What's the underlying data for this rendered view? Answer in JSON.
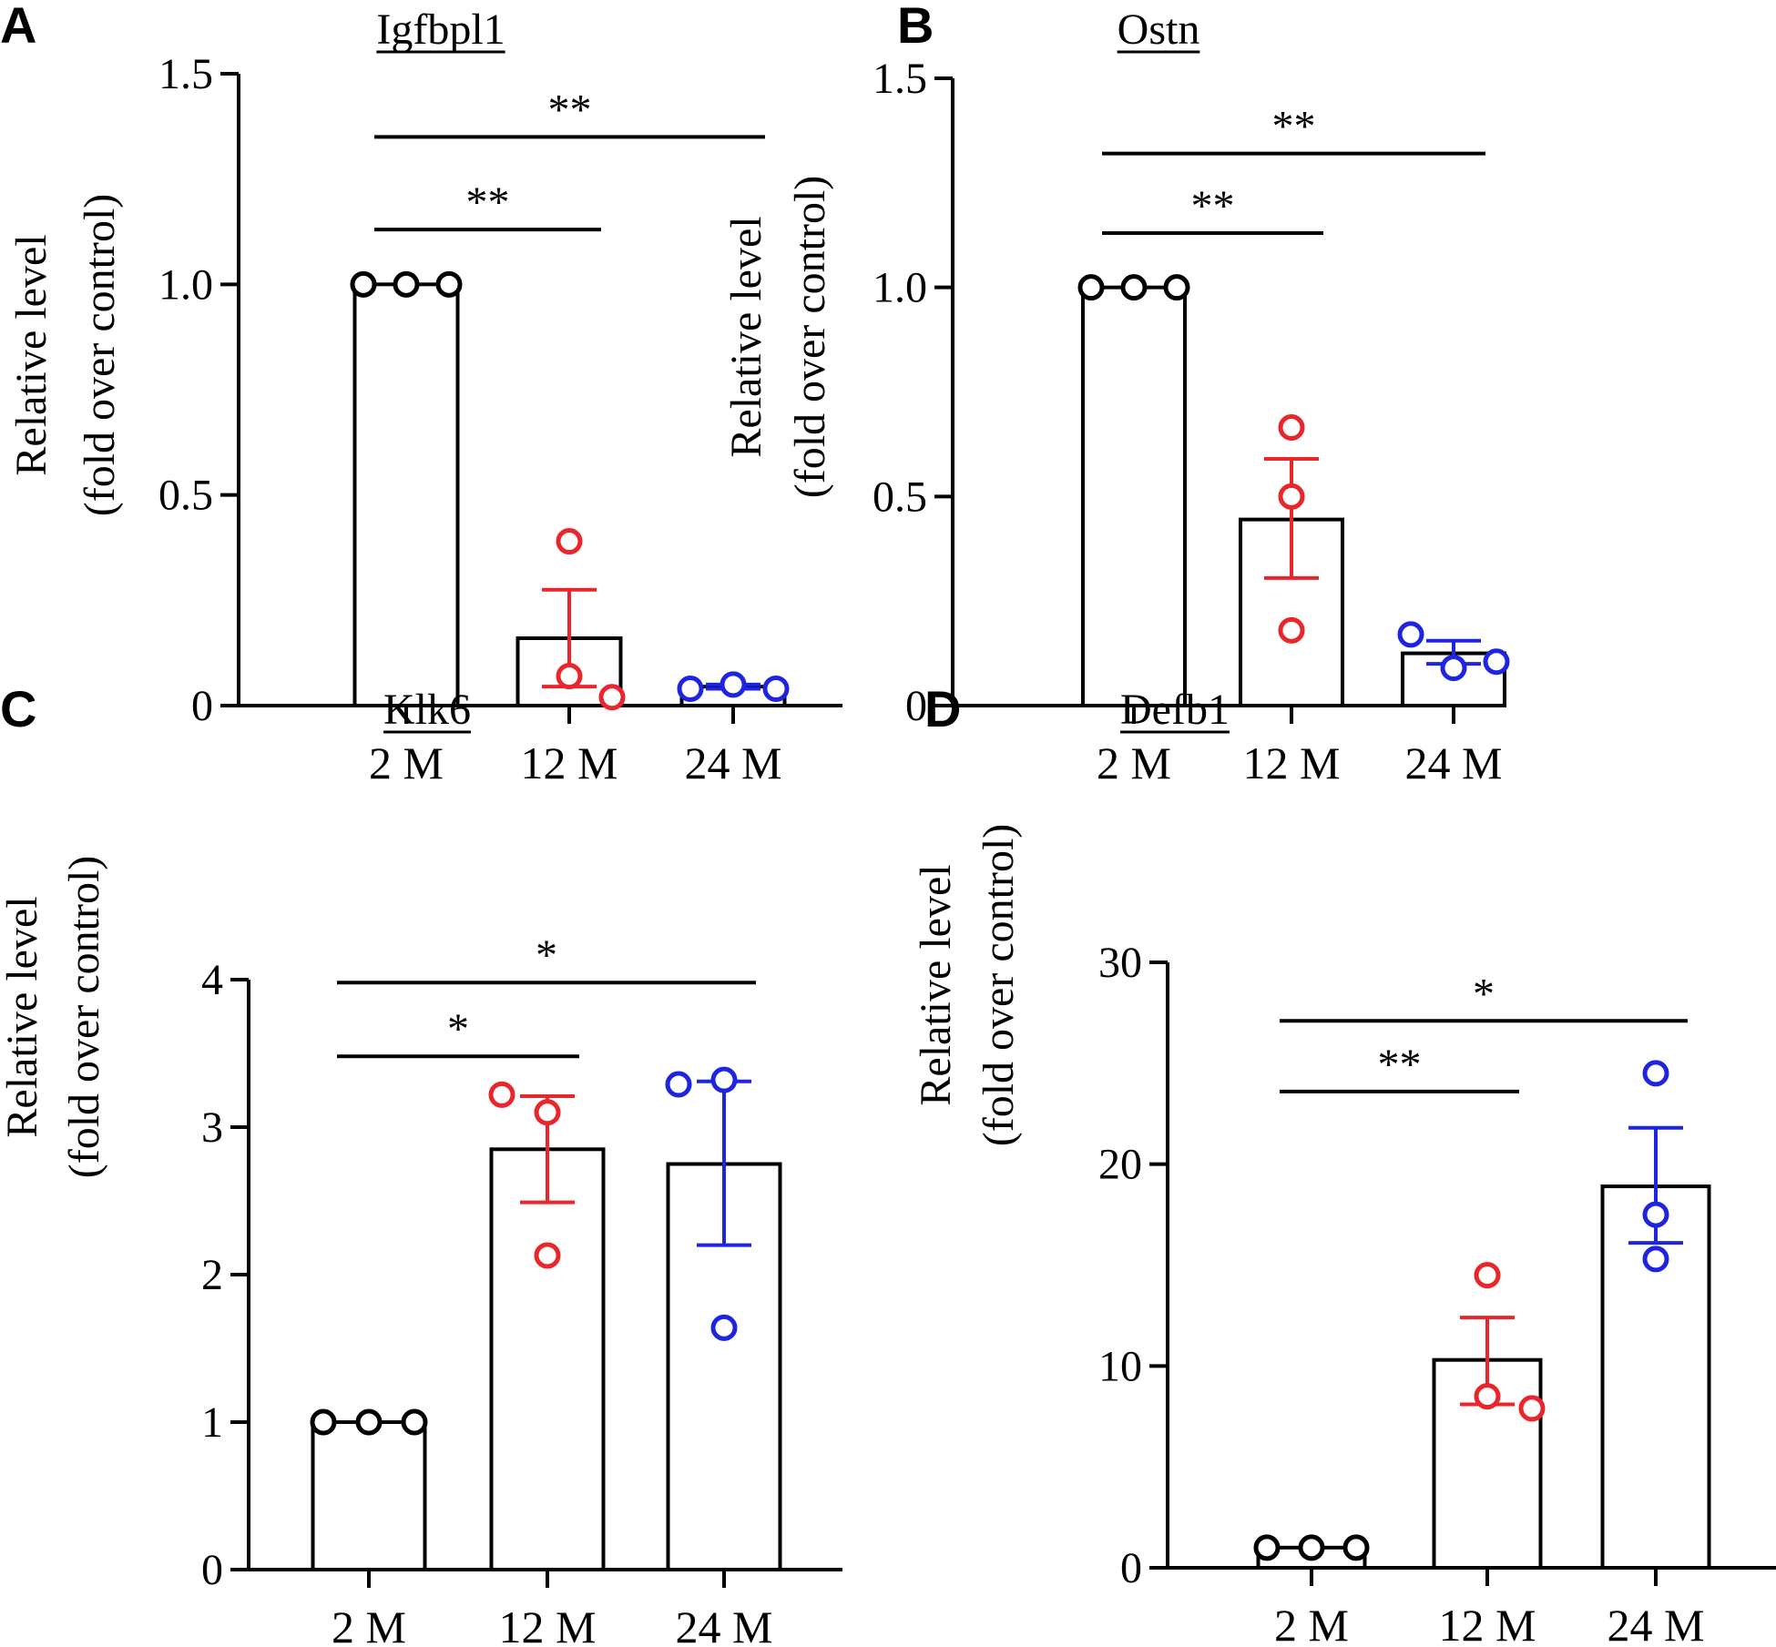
{
  "figure": {
    "panels": [
      "A",
      "B",
      "C",
      "D"
    ]
  },
  "chart_data": [
    {
      "type": "bar",
      "panel_label": "A",
      "title": "Igfbpl1",
      "ylabel_line1": "Relative level",
      "ylabel_line2": "(fold over control)",
      "xlabel": "",
      "categories": [
        "2 M",
        "12 M",
        "24 M"
      ],
      "values": [
        1.0,
        0.16,
        0.045
      ],
      "error_upper": [
        1.0,
        0.275,
        0.05
      ],
      "error_lower": [
        1.0,
        0.045,
        0.04
      ],
      "points": [
        [
          1.0,
          1.0,
          1.0
        ],
        [
          0.39,
          0.07,
          0.02
        ],
        [
          0.04,
          0.05,
          0.04
        ]
      ],
      "point_colors": [
        "#000000",
        "#e8262b",
        "#1f24e0"
      ],
      "ylim": [
        0,
        1.5
      ],
      "yticks": [
        0,
        0.5,
        1.0,
        1.5
      ],
      "ytick_labels": [
        "0",
        "0.5",
        "1.0",
        "1.5"
      ],
      "significance": [
        {
          "from": 0,
          "to": 1,
          "y": 1.13,
          "label": "**"
        },
        {
          "from": 0,
          "to": 2,
          "y": 1.35,
          "label": "**"
        }
      ]
    },
    {
      "type": "bar",
      "panel_label": "B",
      "title": "Ostn",
      "ylabel_line1": "Relative level",
      "ylabel_line2": "(fold over control)",
      "xlabel": "",
      "categories": [
        "2 M",
        "12 M",
        "24 M"
      ],
      "values": [
        1.0,
        0.445,
        0.125
      ],
      "error_upper": [
        1.0,
        0.59,
        0.155
      ],
      "error_lower": [
        1.0,
        0.305,
        0.1
      ],
      "points": [
        [
          1.0,
          1.0,
          1.0
        ],
        [
          0.665,
          0.5,
          0.18
        ],
        [
          0.17,
          0.09,
          0.105
        ]
      ],
      "point_colors": [
        "#000000",
        "#e8262b",
        "#1f24e0"
      ],
      "ylim": [
        0,
        1.5
      ],
      "yticks": [
        0,
        0.5,
        1.0,
        1.5
      ],
      "ytick_labels": [
        "0",
        "0.5",
        "1.0",
        "1.5"
      ],
      "significance": [
        {
          "from": 0,
          "to": 1,
          "y": 1.13,
          "label": "**"
        },
        {
          "from": 0,
          "to": 2,
          "y": 1.32,
          "label": "**"
        }
      ]
    },
    {
      "type": "bar",
      "panel_label": "C",
      "title": "Klk6",
      "ylabel_line1": "Relative level",
      "ylabel_line2": "(fold over control)",
      "xlabel": "",
      "categories": [
        "2 M",
        "12 M",
        "24 M"
      ],
      "values": [
        1.0,
        2.85,
        2.75
      ],
      "error_upper": [
        1.0,
        3.21,
        3.31
      ],
      "error_lower": [
        1.0,
        2.49,
        2.2
      ],
      "points": [
        [
          1.0,
          1.0,
          1.0
        ],
        [
          3.22,
          3.1,
          2.13
        ],
        [
          3.29,
          3.32,
          1.64
        ]
      ],
      "point_colors": [
        "#000000",
        "#e8262b",
        "#1f24e0"
      ],
      "ylim": [
        0,
        4
      ],
      "yticks": [
        0,
        1,
        2,
        3,
        4
      ],
      "ytick_labels": [
        "0",
        "1",
        "2",
        "3",
        "4"
      ],
      "significance": [
        {
          "from": 0,
          "to": 1,
          "y": 3.48,
          "label": "*"
        },
        {
          "from": 0,
          "to": 2,
          "y": 3.98,
          "label": "*"
        }
      ]
    },
    {
      "type": "bar",
      "panel_label": "D",
      "title": "Defb1",
      "ylabel_line1": "Relative level",
      "ylabel_line2": "(fold over control)",
      "xlabel": "",
      "categories": [
        "2 M",
        "12 M",
        "24 M"
      ],
      "values": [
        1.0,
        10.3,
        18.9
      ],
      "error_upper": [
        1.0,
        12.4,
        21.8
      ],
      "error_lower": [
        1.0,
        8.1,
        16.1
      ],
      "points": [
        [
          1.0,
          1.0,
          1.0
        ],
        [
          14.5,
          8.5,
          7.9
        ],
        [
          24.5,
          17.5,
          15.3
        ]
      ],
      "point_colors": [
        "#000000",
        "#e8262b",
        "#1f24e0"
      ],
      "ylim": [
        0,
        30
      ],
      "yticks": [
        0,
        10,
        20,
        30
      ],
      "ytick_labels": [
        "0",
        "10",
        "20",
        "30"
      ],
      "significance": [
        {
          "from": 0,
          "to": 1,
          "y": 23.6,
          "label": "**"
        },
        {
          "from": 0,
          "to": 2,
          "y": 27.1,
          "label": "*"
        }
      ]
    }
  ]
}
